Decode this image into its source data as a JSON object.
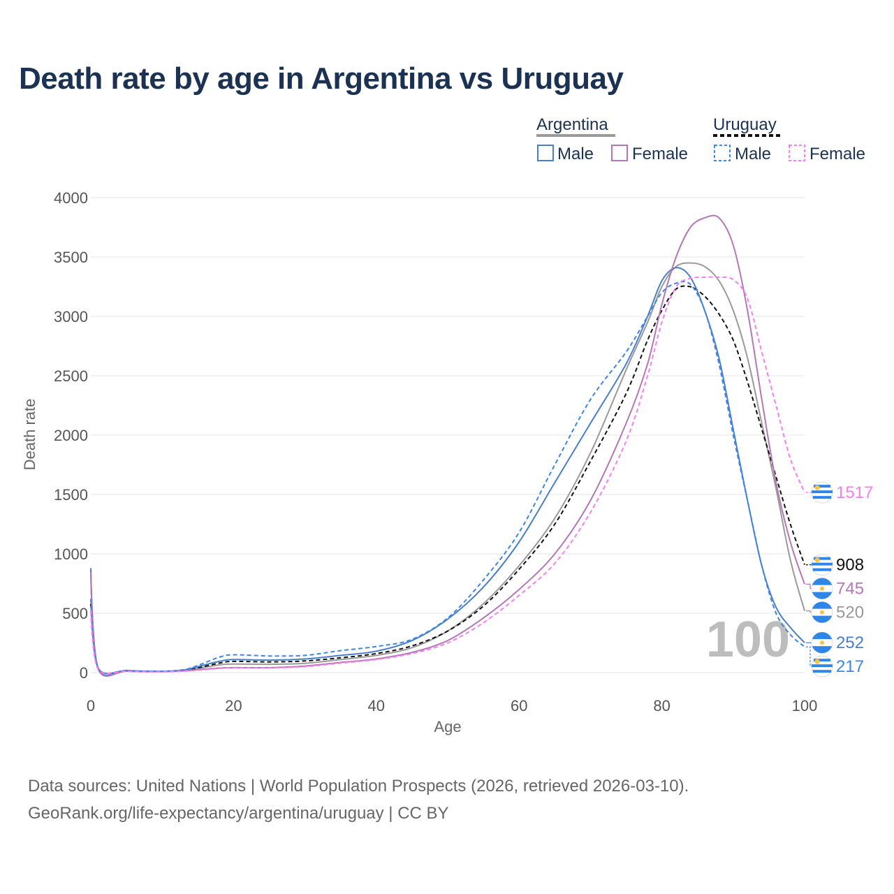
{
  "title": "Death rate by age in Argentina vs Uruguay",
  "footer": {
    "source": "Data sources: United Nations | World Population Prospects (2026, retrieved 2026-03-10).",
    "credit": "GeoRank.org/life-expectancy/argentina/uruguay | CC BY"
  },
  "legend": {
    "group_1": "Argentina",
    "group_2": "Uruguay",
    "male": "Male",
    "female": "Female"
  },
  "colors": {
    "argentina_total": "#999999",
    "uruguay_total": "#111111",
    "argentina_male": "#4a7fc8",
    "argentina_female": "#b377b6",
    "uruguay_male": "#3d85e6",
    "uruguay_female": "#f77ef0",
    "flag_blue": "#2f86e8",
    "flag_sun": "#f6c343"
  },
  "watermark": "100",
  "chart_data": {
    "type": "line",
    "title": "Death rate by age in Argentina vs Uruguay",
    "xlabel": "Age",
    "ylabel": "Death rate",
    "xlim": [
      0,
      100
    ],
    "ylim": [
      0,
      4000
    ],
    "xticks": [
      "0",
      "20",
      "40",
      "60",
      "80",
      "100"
    ],
    "yticks": [
      "0",
      "500",
      "1000",
      "1500",
      "2000",
      "2500",
      "3000",
      "3500",
      "4000"
    ],
    "series": [
      {
        "key": "argentina_total",
        "name": "Argentina",
        "country": "Argentina",
        "sex": "Total",
        "dashed": false,
        "end_label": "520",
        "end_value": 520,
        "x": [
          0,
          1,
          5,
          10,
          13,
          15,
          18,
          20,
          25,
          30,
          35,
          40,
          45,
          50,
          55,
          60,
          65,
          70,
          75,
          78,
          80,
          82,
          84,
          86,
          88,
          90,
          92,
          94,
          96,
          98,
          100
        ],
        "y": [
          870,
          40,
          15,
          10,
          18,
          35,
          65,
          72,
          70,
          78,
          110,
          145,
          210,
          350,
          580,
          900,
          1300,
          1850,
          2550,
          2950,
          3250,
          3420,
          3450,
          3420,
          3300,
          3050,
          2650,
          2100,
          1550,
          950,
          520
        ]
      },
      {
        "key": "uruguay_total",
        "name": "Uruguay",
        "country": "Uruguay",
        "sex": "Total",
        "dashed": true,
        "end_label": "908",
        "end_value": 908,
        "x": [
          0,
          1,
          5,
          10,
          13,
          15,
          18,
          20,
          25,
          30,
          35,
          40,
          45,
          50,
          55,
          60,
          65,
          70,
          75,
          78,
          80,
          82,
          84,
          86,
          88,
          90,
          92,
          94,
          96,
          98,
          100
        ],
        "y": [
          580,
          38,
          15,
          10,
          18,
          40,
          80,
          95,
          90,
          98,
          125,
          160,
          225,
          350,
          560,
          870,
          1250,
          1780,
          2350,
          2800,
          3050,
          3230,
          3250,
          3170,
          3020,
          2800,
          2450,
          2050,
          1650,
          1250,
          908
        ]
      },
      {
        "key": "argentina_male",
        "name": "Argentina Male",
        "country": "Argentina",
        "sex": "Male",
        "dashed": false,
        "end_label": "252",
        "end_value": 252,
        "x": [
          0,
          1,
          5,
          10,
          13,
          15,
          18,
          20,
          25,
          30,
          35,
          40,
          45,
          50,
          55,
          60,
          65,
          70,
          75,
          78,
          80,
          82,
          84,
          86,
          88,
          90,
          92,
          94,
          96,
          98,
          100
        ],
        "y": [
          880,
          45,
          18,
          12,
          22,
          50,
          95,
          110,
          105,
          115,
          145,
          180,
          270,
          450,
          720,
          1100,
          1600,
          2100,
          2600,
          3000,
          3300,
          3410,
          3330,
          3050,
          2650,
          2050,
          1450,
          900,
          550,
          380,
          252
        ]
      },
      {
        "key": "argentina_female",
        "name": "Argentina Female",
        "country": "Argentina",
        "sex": "Female",
        "dashed": false,
        "end_label": "745",
        "end_value": 745,
        "x": [
          0,
          1,
          5,
          10,
          13,
          15,
          18,
          20,
          25,
          30,
          35,
          40,
          45,
          50,
          55,
          60,
          65,
          70,
          75,
          78,
          80,
          82,
          84,
          86,
          88,
          90,
          92,
          94,
          96,
          98,
          100
        ],
        "y": [
          840,
          35,
          12,
          8,
          14,
          25,
          38,
          42,
          42,
          55,
          85,
          115,
          170,
          270,
          460,
          700,
          1000,
          1450,
          2100,
          2600,
          3100,
          3500,
          3750,
          3830,
          3830,
          3600,
          3050,
          2300,
          1600,
          1100,
          745
        ]
      },
      {
        "key": "uruguay_male",
        "name": "Uruguay Male",
        "country": "Uruguay",
        "sex": "Male",
        "dashed": true,
        "end_label": "217",
        "end_value": 217,
        "x": [
          0,
          1,
          5,
          10,
          13,
          15,
          18,
          20,
          25,
          30,
          35,
          40,
          45,
          50,
          55,
          60,
          65,
          70,
          75,
          78,
          80,
          82,
          84,
          86,
          88,
          90,
          92,
          94,
          96,
          98,
          100
        ],
        "y": [
          620,
          42,
          16,
          12,
          24,
          60,
          130,
          150,
          140,
          145,
          185,
          220,
          280,
          460,
          780,
          1180,
          1750,
          2300,
          2700,
          3000,
          3200,
          3280,
          3270,
          3050,
          2600,
          2000,
          1450,
          900,
          500,
          320,
          217
        ]
      },
      {
        "key": "uruguay_female",
        "name": "Uruguay Female",
        "country": "Uruguay",
        "sex": "Female",
        "dashed": true,
        "end_label": "1517",
        "end_value": 1517,
        "x": [
          0,
          1,
          5,
          10,
          13,
          15,
          18,
          20,
          25,
          30,
          35,
          40,
          45,
          50,
          55,
          60,
          65,
          70,
          75,
          78,
          80,
          82,
          84,
          86,
          88,
          90,
          92,
          94,
          96,
          98,
          100
        ],
        "y": [
          520,
          32,
          12,
          8,
          12,
          20,
          35,
          40,
          40,
          50,
          80,
          110,
          160,
          250,
          420,
          650,
          920,
          1350,
          1950,
          2500,
          2950,
          3250,
          3320,
          3330,
          3330,
          3310,
          3150,
          2700,
          2250,
          1800,
          1517
        ]
      }
    ],
    "end_label_order": [
      "uruguay_female",
      "uruguay_total",
      "argentina_female",
      "argentina_total",
      "argentina_male",
      "uruguay_male"
    ]
  }
}
